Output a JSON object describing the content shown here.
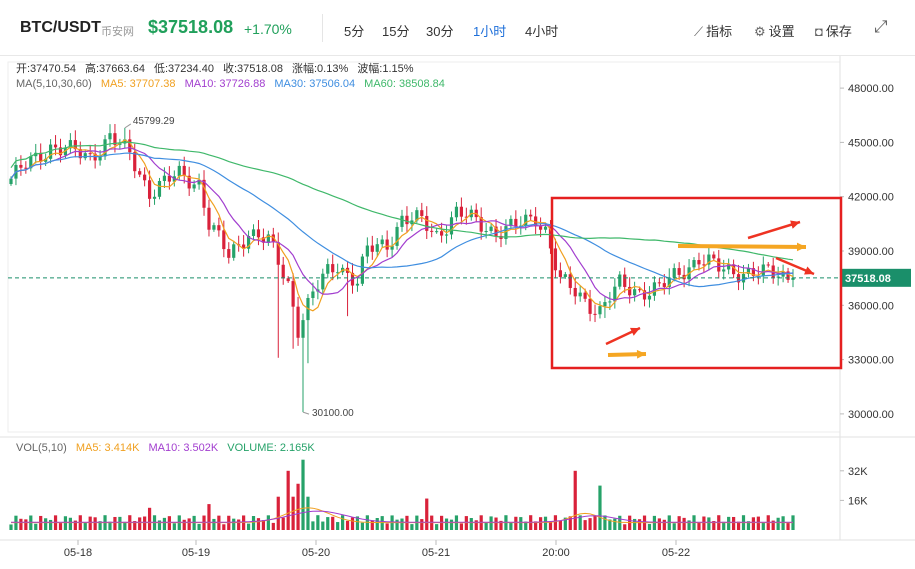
{
  "header": {
    "symbol": "BTC/USDT",
    "exchange": "币安网",
    "price": "$37518.08",
    "change": "+1.70%",
    "timeframes": [
      "5分",
      "15分",
      "30分",
      "1小时",
      "4小时"
    ],
    "active_timeframe": "1小时",
    "tools": {
      "indicators": "指标",
      "settings": "设置",
      "save": "保存"
    }
  },
  "ohlc": {
    "open": "开:37470.54",
    "high": "高:37663.64",
    "low": "低:37234.40",
    "close": "收:37518.08",
    "change": "涨幅:0.13%",
    "amplitude": "波幅:1.15%"
  },
  "ma_legend": {
    "label": "MA(5,10,30,60)",
    "ma5": "MA5: 37707.38",
    "ma10": "MA10: 37726.88",
    "ma30": "MA30: 37506.04",
    "ma60": "MA60: 38508.84"
  },
  "vol_legend": {
    "label": "VOL(5,10)",
    "ma5": "MA5: 3.414K",
    "ma10": "MA10: 3.502K",
    "volume": "VOLUME: 2.165K"
  },
  "price_axis": {
    "ticks": [
      "48000.00",
      "45000.00",
      "42000.00",
      "39000.00",
      "36000.00",
      "33000.00",
      "30000.00"
    ],
    "current": "37518.08"
  },
  "vol_axis": {
    "ticks": [
      "32K",
      "16K"
    ]
  },
  "time_axis": {
    "ticks": [
      "05-18",
      "05-19",
      "05-20",
      "05-21",
      "20:00",
      "05-22"
    ]
  },
  "annotations": {
    "high": "45799.29",
    "low": "30100.00"
  },
  "colors": {
    "up": "#26a269",
    "down": "#d9213a",
    "ma5": "#f0a020",
    "ma10": "#a23ecf",
    "ma30": "#3f8ee0",
    "ma60": "#3fb86a",
    "current_line": "#1a8f6a",
    "highlight_box": "#e52020",
    "arrow_red": "#ee3322",
    "arrow_orange": "#f5a623"
  },
  "chart_data": {
    "type": "candlestick",
    "ylim": [
      29000,
      49000
    ],
    "current_price": 37518.08,
    "annotated_high": 45799.29,
    "annotated_low": 30100.0,
    "time_ticks": [
      "05-18",
      "05-19",
      "05-20",
      "05-21",
      "20:00",
      "05-22"
    ]
  }
}
